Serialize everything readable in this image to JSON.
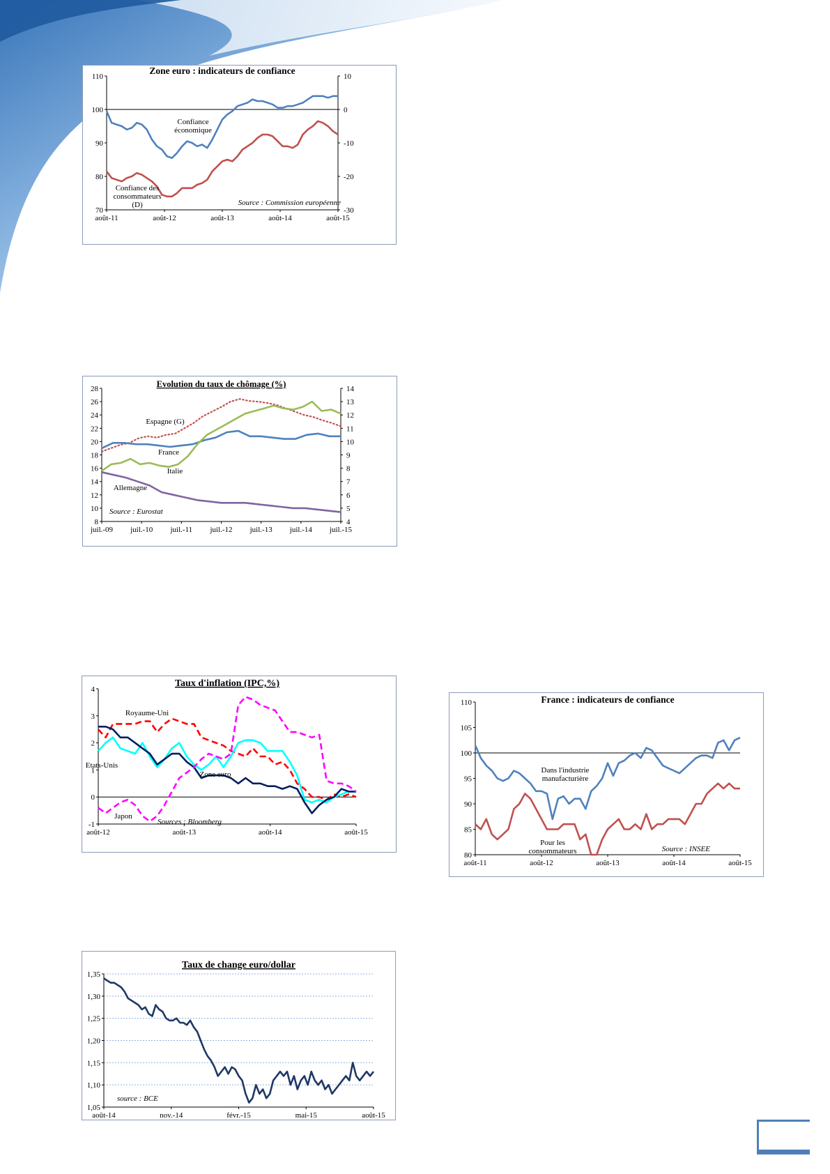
{
  "chart_data": [
    {
      "id": "zone-euro-confiance",
      "type": "line",
      "title": "Zone euro : indicateurs de confiance",
      "source": "Source : Commission européenne",
      "x_ticks": [
        "août-11",
        "août-12",
        "août-13",
        "août-14",
        "août-15"
      ],
      "y_left": {
        "min": 70,
        "max": 110,
        "ticks": [
          70,
          80,
          90,
          100,
          110
        ]
      },
      "y_right": {
        "min": -30,
        "max": 10,
        "ticks": [
          -30,
          -20,
          -10,
          0,
          10
        ]
      },
      "zero_line_right": 0,
      "series": [
        {
          "name": "Confiance économique",
          "axis": "left",
          "color": "#4f81bd",
          "label_lines": [
            "Confiance",
            "économique"
          ],
          "values": [
            99.5,
            96,
            95.5,
            95,
            94,
            94.5,
            96,
            95.5,
            94,
            91,
            89,
            88,
            86,
            85.5,
            87,
            89,
            90.5,
            90,
            89,
            89.5,
            88.5,
            91,
            94,
            97,
            98.5,
            99.5,
            101,
            101.5,
            102,
            103,
            102.5,
            102.5,
            102,
            101.5,
            100.5,
            100.5,
            101,
            101,
            101.5,
            102,
            103,
            104,
            104,
            104,
            103.5,
            104,
            104
          ]
        },
        {
          "name": "Confiance des consommateurs (D)",
          "axis": "right",
          "color": "#c0504d",
          "label_lines": [
            "Confiance des",
            "consommateurs",
            "(D)"
          ],
          "values": [
            -18.5,
            -20.5,
            -21,
            -21.5,
            -20.5,
            -20,
            -19,
            -19.5,
            -20.5,
            -21.5,
            -23,
            -25.5,
            -26,
            -26,
            -25,
            -23.5,
            -23.5,
            -23.5,
            -22.5,
            -22,
            -21,
            -18.5,
            -17,
            -15.5,
            -15,
            -15.5,
            -14,
            -12,
            -11,
            -10,
            -8.5,
            -7.5,
            -7.5,
            -8,
            -9.5,
            -11,
            -11,
            -11.5,
            -10.5,
            -7.5,
            -6,
            -5,
            -3.5,
            -4,
            -5,
            -6.5,
            -7.5
          ]
        }
      ]
    },
    {
      "id": "taux-chomage",
      "type": "line",
      "title": "Evolution du taux de chômage (%)",
      "source": "Source : Eurostat",
      "x_ticks": [
        "juil.-09",
        "juil.-10",
        "juil.-11",
        "juil.-12",
        "juil.-13",
        "juil.-14",
        "juil.-15"
      ],
      "y_left": {
        "min": 8,
        "max": 28,
        "ticks": [
          8,
          10,
          12,
          14,
          16,
          18,
          20,
          22,
          24,
          26,
          28
        ]
      },
      "y_right": {
        "min": 4,
        "max": 14,
        "ticks": [
          4,
          5,
          6,
          7,
          8,
          9,
          10,
          11,
          12,
          13,
          14
        ]
      },
      "series": [
        {
          "name": "Espagne (G)",
          "axis": "left",
          "color": "#c0504d",
          "dotted": true,
          "label_lines": [
            "Espagne (G)"
          ],
          "values": [
            18.5,
            19,
            19.5,
            19.8,
            20.5,
            20.8,
            20.6,
            21,
            21.2,
            22,
            22.8,
            23.8,
            24.5,
            25.2,
            26,
            26.4,
            26.1,
            26,
            25.8,
            25.5,
            25,
            24.5,
            24,
            23.7,
            23.2,
            22.8,
            22.3
          ]
        },
        {
          "name": "France",
          "axis": "right",
          "color": "#4f81bd",
          "label_lines": [
            "France"
          ],
          "values": [
            9.5,
            9.9,
            9.9,
            9.8,
            9.8,
            9.7,
            9.6,
            9.7,
            9.8,
            10.1,
            10.3,
            10.7,
            10.8,
            10.4,
            10.4,
            10.3,
            10.2,
            10.2,
            10.5,
            10.6,
            10.4,
            10.4
          ]
        },
        {
          "name": "Italie",
          "axis": "right",
          "color": "#9bbb59",
          "label_lines": [
            "Italie"
          ],
          "values": [
            7.8,
            8.3,
            8.4,
            8.7,
            8.3,
            8.4,
            8.2,
            8.1,
            8.3,
            8.9,
            9.8,
            10.5,
            10.9,
            11.3,
            11.7,
            12.1,
            12.3,
            12.5,
            12.7,
            12.5,
            12.4,
            12.6,
            13,
            12.3,
            12.4,
            12.1
          ]
        },
        {
          "name": "Allemagne",
          "axis": "right",
          "color": "#8064a2",
          "label_lines": [
            "Allemagne"
          ],
          "values": [
            7.7,
            7.5,
            7.3,
            7.0,
            6.7,
            6.2,
            6.0,
            5.8,
            5.6,
            5.5,
            5.4,
            5.4,
            5.4,
            5.3,
            5.2,
            5.1,
            5.0,
            5.0,
            4.9,
            4.8,
            4.7
          ]
        }
      ]
    },
    {
      "id": "taux-inflation",
      "type": "line",
      "title": "Taux d'inflation (IPC,%)",
      "source": "Sources : Bloomberg",
      "x_ticks": [
        "août-12",
        "août-13",
        "août-14",
        "août-15"
      ],
      "y_left": {
        "min": -1,
        "max": 4,
        "ticks": [
          -1,
          0,
          1,
          2,
          3,
          4
        ]
      },
      "series": [
        {
          "name": "Royaume-Uni",
          "color": "#ff0000",
          "dashed": true,
          "label_lines": [
            "Royaume-Uni"
          ],
          "values": [
            2.5,
            2.2,
            2.7,
            2.7,
            2.7,
            2.7,
            2.8,
            2.8,
            2.4,
            2.7,
            2.9,
            2.8,
            2.7,
            2.7,
            2.2,
            2.1,
            2.0,
            1.9,
            1.7,
            1.6,
            1.5,
            1.8,
            1.5,
            1.5,
            1.2,
            1.3,
            1.0,
            0.5,
            0.3,
            0.0,
            0.0,
            -0.1,
            0.1,
            0.0,
            0.1,
            0.0
          ]
        },
        {
          "name": "Etats-Unis",
          "color": "#00ffff",
          "label_lines": [
            "Etats-Unis"
          ],
          "values": [
            1.7,
            2.0,
            2.2,
            1.8,
            1.7,
            1.6,
            2.0,
            1.5,
            1.1,
            1.4,
            1.8,
            2.0,
            1.5,
            1.2,
            1.0,
            1.2,
            1.5,
            1.1,
            1.5,
            2.0,
            2.1,
            2.1,
            2.0,
            1.7,
            1.7,
            1.7,
            1.3,
            0.8,
            -0.1,
            -0.2,
            -0.1,
            -0.2,
            0.0,
            0.1,
            0.2,
            0.2
          ]
        },
        {
          "name": "Zone euro",
          "color": "#001f5f",
          "label_lines": [
            "Zone euro"
          ],
          "values": [
            2.6,
            2.6,
            2.5,
            2.2,
            2.2,
            2.0,
            1.8,
            1.6,
            1.2,
            1.4,
            1.6,
            1.6,
            1.3,
            1.1,
            0.7,
            0.8,
            0.8,
            0.8,
            0.7,
            0.5,
            0.7,
            0.5,
            0.5,
            0.4,
            0.4,
            0.3,
            0.4,
            0.3,
            -0.2,
            -0.6,
            -0.3,
            -0.1,
            0.0,
            0.3,
            0.2,
            0.2
          ]
        },
        {
          "name": "Japon",
          "color": "#ff00ff",
          "dashed": true,
          "label_lines": [
            "Japon"
          ],
          "values": [
            -0.4,
            -0.6,
            -0.4,
            -0.2,
            -0.1,
            -0.3,
            -0.7,
            -0.9,
            -0.7,
            -0.3,
            0.2,
            0.7,
            0.9,
            1.1,
            1.4,
            1.6,
            1.5,
            1.4,
            1.6,
            3.4,
            3.7,
            3.6,
            3.4,
            3.3,
            3.2,
            2.8,
            2.4,
            2.4,
            2.3,
            2.2,
            2.3,
            0.6,
            0.5,
            0.5,
            0.4,
            0.2
          ]
        }
      ]
    },
    {
      "id": "france-confiance",
      "type": "line",
      "title": "France : indicateurs de confiance",
      "source": "Source : INSEE",
      "x_ticks": [
        "août-11",
        "août-12",
        "août-13",
        "août-14",
        "août-15"
      ],
      "y_left": {
        "min": 80,
        "max": 110,
        "ticks": [
          80,
          85,
          90,
          95,
          100,
          105,
          110
        ]
      },
      "reference_line": 100,
      "series": [
        {
          "name": "Dans l'industrie manufacturière",
          "color": "#4f81bd",
          "label_lines": [
            "Dans l'industrie",
            "manufacturière"
          ],
          "values": [
            101.5,
            99,
            97.5,
            96.5,
            95,
            94.5,
            95,
            96.5,
            96,
            95,
            94,
            92.5,
            92.5,
            92,
            87,
            91,
            91.5,
            90,
            91,
            91,
            89,
            92.5,
            93.5,
            95,
            98,
            95.5,
            98,
            98.5,
            99.5,
            100,
            99,
            101,
            100.5,
            99,
            97.5,
            97,
            96.5,
            96,
            97,
            98,
            99,
            99.5,
            99.5,
            99,
            102,
            102.5,
            100.5,
            102.5,
            103
          ]
        },
        {
          "name": "Pour les consommateurs",
          "color": "#c0504d",
          "label_lines": [
            "Pour les",
            "consommateurs"
          ],
          "values": [
            86,
            85,
            87,
            84,
            83,
            84,
            85,
            89,
            90,
            92,
            91,
            89,
            87,
            85,
            85,
            85,
            86,
            86,
            86,
            83,
            84,
            80,
            80,
            83,
            85,
            86,
            87,
            85,
            85,
            86,
            85,
            88,
            85,
            86,
            86,
            87,
            87,
            87,
            86,
            88,
            90,
            90,
            92,
            93,
            94,
            93,
            94,
            93,
            93
          ]
        }
      ]
    },
    {
      "id": "taux-change",
      "type": "line",
      "title": "Taux de change euro/dollar",
      "source": "source : BCE",
      "x_ticks": [
        "août-14",
        "nov.-14",
        "févr.-15",
        "mai-15",
        "août-15"
      ],
      "y_left": {
        "min": 1.05,
        "max": 1.35,
        "ticks": [
          "1,05",
          "1,10",
          "1,15",
          "1,20",
          "1,25",
          "1,30",
          "1,35"
        ],
        "tick_values": [
          1.05,
          1.1,
          1.15,
          1.2,
          1.25,
          1.3,
          1.35
        ]
      },
      "series": [
        {
          "name": "EUR/USD",
          "color": "#1f3864",
          "label_lines": [],
          "values": [
            1.34,
            1.335,
            1.33,
            1.33,
            1.325,
            1.32,
            1.31,
            1.295,
            1.29,
            1.285,
            1.28,
            1.27,
            1.275,
            1.26,
            1.255,
            1.28,
            1.27,
            1.265,
            1.25,
            1.245,
            1.245,
            1.25,
            1.24,
            1.24,
            1.235,
            1.245,
            1.23,
            1.22,
            1.2,
            1.18,
            1.165,
            1.155,
            1.14,
            1.12,
            1.13,
            1.14,
            1.125,
            1.14,
            1.135,
            1.12,
            1.11,
            1.08,
            1.06,
            1.07,
            1.1,
            1.08,
            1.09,
            1.07,
            1.08,
            1.11,
            1.12,
            1.13,
            1.12,
            1.13,
            1.1,
            1.12,
            1.09,
            1.11,
            1.12,
            1.1,
            1.13,
            1.11,
            1.1,
            1.11,
            1.09,
            1.1,
            1.08,
            1.09,
            1.1,
            1.11,
            1.12,
            1.11,
            1.15,
            1.12,
            1.11,
            1.12,
            1.13,
            1.12,
            1.13
          ]
        }
      ]
    }
  ]
}
